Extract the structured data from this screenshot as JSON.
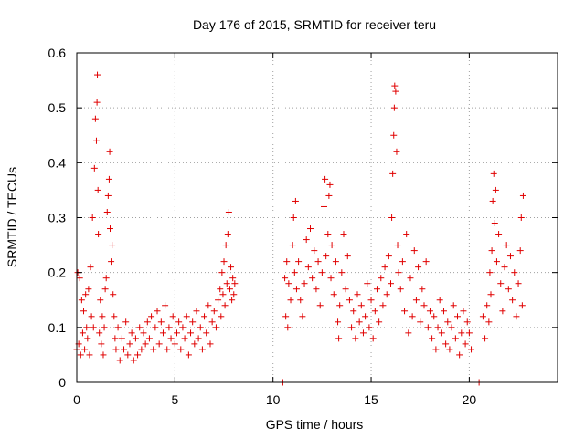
{
  "chart_data": {
    "type": "scatter",
    "title": "Day 176 of 2015, SRMTID for receiver teru",
    "xlabel": "GPS time / hours",
    "ylabel": "SRMTID / TECUs",
    "xlim": [
      0,
      24.5
    ],
    "ylim": [
      0,
      0.6
    ],
    "xticks": [
      0,
      5,
      10,
      15,
      20
    ],
    "xtick_labels": [
      "0",
      "5",
      "10",
      "15",
      "20"
    ],
    "yticks": [
      0,
      0.1,
      0.2,
      0.3,
      0.4,
      0.5,
      0.6
    ],
    "ytick_labels": [
      "0",
      "0.1",
      "0.2",
      "0.3",
      "0.4",
      "0.5",
      "0.6"
    ],
    "grid": true,
    "marker": "+",
    "color": "#e00000",
    "series": [
      {
        "name": "SRMTID",
        "points": [
          [
            0.0,
            0.06
          ],
          [
            0.05,
            0.2
          ],
          [
            0.1,
            0.07
          ],
          [
            0.15,
            0.19
          ],
          [
            0.2,
            0.05
          ],
          [
            0.25,
            0.15
          ],
          [
            0.3,
            0.09
          ],
          [
            0.35,
            0.13
          ],
          [
            0.4,
            0.06
          ],
          [
            0.45,
            0.16
          ],
          [
            0.5,
            0.1
          ],
          [
            0.55,
            0.08
          ],
          [
            0.6,
            0.17
          ],
          [
            0.65,
            0.05
          ],
          [
            0.7,
            0.21
          ],
          [
            0.75,
            0.12
          ],
          [
            0.8,
            0.3
          ],
          [
            0.85,
            0.1
          ],
          [
            0.9,
            0.39
          ],
          [
            0.95,
            0.48
          ],
          [
            1.0,
            0.44
          ],
          [
            1.03,
            0.51
          ],
          [
            1.05,
            0.56
          ],
          [
            1.08,
            0.35
          ],
          [
            1.1,
            0.27
          ],
          [
            1.15,
            0.09
          ],
          [
            1.2,
            0.15
          ],
          [
            1.25,
            0.07
          ],
          [
            1.3,
            0.12
          ],
          [
            1.35,
            0.05
          ],
          [
            1.4,
            0.1
          ],
          [
            1.45,
            0.17
          ],
          [
            1.5,
            0.19
          ],
          [
            1.55,
            0.31
          ],
          [
            1.6,
            0.34
          ],
          [
            1.65,
            0.37
          ],
          [
            1.68,
            0.42
          ],
          [
            1.7,
            0.28
          ],
          [
            1.75,
            0.22
          ],
          [
            1.8,
            0.25
          ],
          [
            1.85,
            0.16
          ],
          [
            1.9,
            0.12
          ],
          [
            1.95,
            0.08
          ],
          [
            2.0,
            0.06
          ],
          [
            2.1,
            0.1
          ],
          [
            2.2,
            0.04
          ],
          [
            2.3,
            0.08
          ],
          [
            2.4,
            0.06
          ],
          [
            2.5,
            0.11
          ],
          [
            2.6,
            0.05
          ],
          [
            2.7,
            0.07
          ],
          [
            2.8,
            0.09
          ],
          [
            2.9,
            0.04
          ],
          [
            3.0,
            0.08
          ],
          [
            3.1,
            0.05
          ],
          [
            3.2,
            0.1
          ],
          [
            3.3,
            0.06
          ],
          [
            3.4,
            0.09
          ],
          [
            3.5,
            0.07
          ],
          [
            3.6,
            0.11
          ],
          [
            3.7,
            0.08
          ],
          [
            3.8,
            0.12
          ],
          [
            3.9,
            0.06
          ],
          [
            4.0,
            0.1
          ],
          [
            4.1,
            0.13
          ],
          [
            4.2,
            0.07
          ],
          [
            4.3,
            0.11
          ],
          [
            4.4,
            0.09
          ],
          [
            4.5,
            0.14
          ],
          [
            4.6,
            0.06
          ],
          [
            4.7,
            0.1
          ],
          [
            4.8,
            0.08
          ],
          [
            4.9,
            0.12
          ],
          [
            5.0,
            0.07
          ],
          [
            5.1,
            0.09
          ],
          [
            5.2,
            0.11
          ],
          [
            5.3,
            0.06
          ],
          [
            5.4,
            0.1
          ],
          [
            5.5,
            0.08
          ],
          [
            5.6,
            0.12
          ],
          [
            5.7,
            0.05
          ],
          [
            5.8,
            0.09
          ],
          [
            5.9,
            0.11
          ],
          [
            6.0,
            0.07
          ],
          [
            6.1,
            0.13
          ],
          [
            6.2,
            0.08
          ],
          [
            6.3,
            0.1
          ],
          [
            6.4,
            0.06
          ],
          [
            6.5,
            0.12
          ],
          [
            6.6,
            0.09
          ],
          [
            6.7,
            0.14
          ],
          [
            6.8,
            0.07
          ],
          [
            6.9,
            0.11
          ],
          [
            7.0,
            0.13
          ],
          [
            7.1,
            0.1
          ],
          [
            7.2,
            0.15
          ],
          [
            7.3,
            0.17
          ],
          [
            7.35,
            0.12
          ],
          [
            7.4,
            0.2
          ],
          [
            7.45,
            0.16
          ],
          [
            7.5,
            0.22
          ],
          [
            7.55,
            0.14
          ],
          [
            7.6,
            0.25
          ],
          [
            7.65,
            0.18
          ],
          [
            7.7,
            0.27
          ],
          [
            7.75,
            0.31
          ],
          [
            7.8,
            0.17
          ],
          [
            7.85,
            0.21
          ],
          [
            7.9,
            0.15
          ],
          [
            7.95,
            0.19
          ],
          [
            8.0,
            0.16
          ],
          [
            8.05,
            0.18
          ],
          [
            10.5,
            0.0
          ],
          [
            10.6,
            0.19
          ],
          [
            10.65,
            0.12
          ],
          [
            10.7,
            0.22
          ],
          [
            10.75,
            0.1
          ],
          [
            10.8,
            0.18
          ],
          [
            10.9,
            0.15
          ],
          [
            11.0,
            0.25
          ],
          [
            11.05,
            0.3
          ],
          [
            11.1,
            0.2
          ],
          [
            11.15,
            0.33
          ],
          [
            11.2,
            0.17
          ],
          [
            11.3,
            0.22
          ],
          [
            11.4,
            0.15
          ],
          [
            11.5,
            0.12
          ],
          [
            11.6,
            0.18
          ],
          [
            11.7,
            0.26
          ],
          [
            11.8,
            0.21
          ],
          [
            11.9,
            0.28
          ],
          [
            12.0,
            0.19
          ],
          [
            12.1,
            0.24
          ],
          [
            12.2,
            0.17
          ],
          [
            12.3,
            0.22
          ],
          [
            12.4,
            0.14
          ],
          [
            12.5,
            0.2
          ],
          [
            12.6,
            0.32
          ],
          [
            12.65,
            0.37
          ],
          [
            12.7,
            0.23
          ],
          [
            12.8,
            0.27
          ],
          [
            12.85,
            0.34
          ],
          [
            12.9,
            0.36
          ],
          [
            12.95,
            0.19
          ],
          [
            13.0,
            0.25
          ],
          [
            13.1,
            0.16
          ],
          [
            13.2,
            0.22
          ],
          [
            13.3,
            0.11
          ],
          [
            13.35,
            0.08
          ],
          [
            13.4,
            0.14
          ],
          [
            13.5,
            0.2
          ],
          [
            13.6,
            0.27
          ],
          [
            13.7,
            0.17
          ],
          [
            13.8,
            0.23
          ],
          [
            13.9,
            0.15
          ],
          [
            14.0,
            0.1
          ],
          [
            14.1,
            0.13
          ],
          [
            14.2,
            0.08
          ],
          [
            14.3,
            0.16
          ],
          [
            14.4,
            0.11
          ],
          [
            14.5,
            0.14
          ],
          [
            14.6,
            0.09
          ],
          [
            14.7,
            0.12
          ],
          [
            14.8,
            0.18
          ],
          [
            14.9,
            0.1
          ],
          [
            15.0,
            0.15
          ],
          [
            15.1,
            0.08
          ],
          [
            15.2,
            0.13
          ],
          [
            15.3,
            0.17
          ],
          [
            15.4,
            0.11
          ],
          [
            15.5,
            0.19
          ],
          [
            15.6,
            0.14
          ],
          [
            15.7,
            0.21
          ],
          [
            15.8,
            0.16
          ],
          [
            15.9,
            0.23
          ],
          [
            16.0,
            0.18
          ],
          [
            16.05,
            0.3
          ],
          [
            16.1,
            0.38
          ],
          [
            16.15,
            0.45
          ],
          [
            16.18,
            0.5
          ],
          [
            16.2,
            0.54
          ],
          [
            16.25,
            0.53
          ],
          [
            16.3,
            0.42
          ],
          [
            16.35,
            0.25
          ],
          [
            16.4,
            0.2
          ],
          [
            16.5,
            0.17
          ],
          [
            16.6,
            0.22
          ],
          [
            16.7,
            0.13
          ],
          [
            16.8,
            0.27
          ],
          [
            16.9,
            0.09
          ],
          [
            17.0,
            0.19
          ],
          [
            17.1,
            0.12
          ],
          [
            17.2,
            0.24
          ],
          [
            17.3,
            0.15
          ],
          [
            17.4,
            0.21
          ],
          [
            17.5,
            0.11
          ],
          [
            17.6,
            0.17
          ],
          [
            17.7,
            0.14
          ],
          [
            17.8,
            0.22
          ],
          [
            17.9,
            0.1
          ],
          [
            18.0,
            0.13
          ],
          [
            18.1,
            0.08
          ],
          [
            18.2,
            0.12
          ],
          [
            18.3,
            0.06
          ],
          [
            18.4,
            0.1
          ],
          [
            18.5,
            0.15
          ],
          [
            18.6,
            0.09
          ],
          [
            18.7,
            0.13
          ],
          [
            18.8,
            0.07
          ],
          [
            18.9,
            0.11
          ],
          [
            19.0,
            0.06
          ],
          [
            19.1,
            0.1
          ],
          [
            19.2,
            0.14
          ],
          [
            19.3,
            0.08
          ],
          [
            19.4,
            0.12
          ],
          [
            19.5,
            0.05
          ],
          [
            19.6,
            0.09
          ],
          [
            19.7,
            0.13
          ],
          [
            19.8,
            0.07
          ],
          [
            19.9,
            0.11
          ],
          [
            20.0,
            0.09
          ],
          [
            20.1,
            0.06
          ],
          [
            20.5,
            0.0
          ],
          [
            20.7,
            0.12
          ],
          [
            20.8,
            0.08
          ],
          [
            20.9,
            0.14
          ],
          [
            21.0,
            0.11
          ],
          [
            21.05,
            0.2
          ],
          [
            21.1,
            0.16
          ],
          [
            21.15,
            0.24
          ],
          [
            21.2,
            0.33
          ],
          [
            21.25,
            0.38
          ],
          [
            21.3,
            0.29
          ],
          [
            21.35,
            0.35
          ],
          [
            21.4,
            0.22
          ],
          [
            21.5,
            0.27
          ],
          [
            21.6,
            0.18
          ],
          [
            21.7,
            0.13
          ],
          [
            21.8,
            0.21
          ],
          [
            21.9,
            0.25
          ],
          [
            22.0,
            0.17
          ],
          [
            22.1,
            0.23
          ],
          [
            22.2,
            0.15
          ],
          [
            22.3,
            0.2
          ],
          [
            22.4,
            0.12
          ],
          [
            22.5,
            0.18
          ],
          [
            22.6,
            0.24
          ],
          [
            22.65,
            0.3
          ],
          [
            22.7,
            0.14
          ],
          [
            22.75,
            0.34
          ]
        ]
      }
    ]
  }
}
